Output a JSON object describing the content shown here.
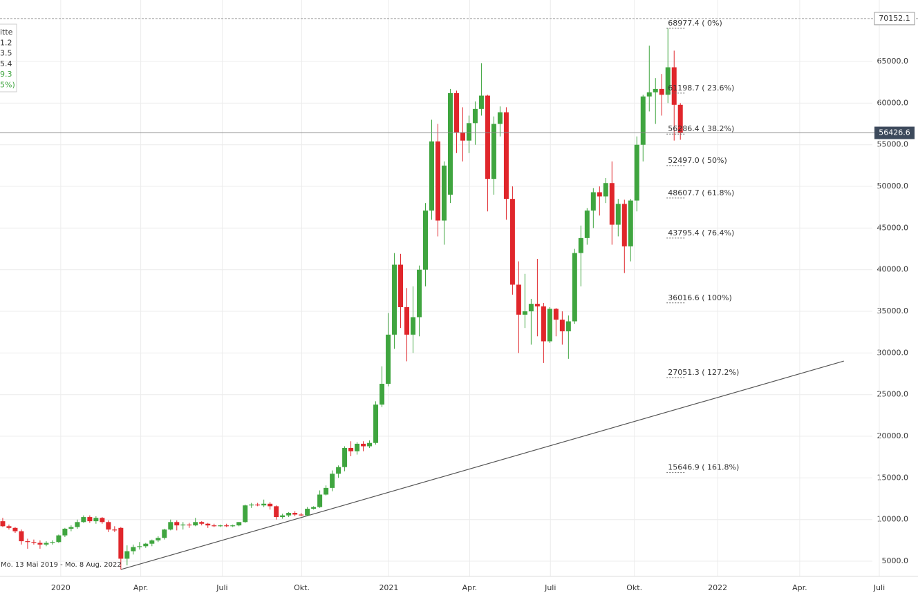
{
  "chart_data": {
    "type": "candlestick",
    "up_color": "#3fa53f",
    "down_color": "#e0262b",
    "grid": true,
    "legend_lines": [
      "itte",
      "1.2",
      "3.5",
      "5.4",
      "9.3",
      "5%)"
    ],
    "range_text": "Mo. 13 Mai 2019 - Mo. 8 Aug. 2022",
    "ylim": [
      3180,
      72380
    ],
    "yticks": [
      {
        "value": 5000,
        "label": "5000.0"
      },
      {
        "value": 10000,
        "label": "10000.0"
      },
      {
        "value": 15000,
        "label": "15000.0"
      },
      {
        "value": 20000,
        "label": "20000.0"
      },
      {
        "value": 25000,
        "label": "25000.0"
      },
      {
        "value": 30000,
        "label": "30000.0"
      },
      {
        "value": 35000,
        "label": "35000.0"
      },
      {
        "value": 40000,
        "label": "40000.0"
      },
      {
        "value": 45000,
        "label": "45000.0"
      },
      {
        "value": 50000,
        "label": "50000.0"
      },
      {
        "value": 55000,
        "label": "55000.0"
      },
      {
        "value": 60000,
        "label": "60000.0"
      },
      {
        "value": 65000,
        "label": "65000.0"
      }
    ],
    "xlim": [
      -0.44,
      143
    ],
    "xticks": [
      {
        "value": 9.33,
        "label": "2020"
      },
      {
        "value": 22.2,
        "label": "Apr."
      },
      {
        "value": 35.3,
        "label": "Juli"
      },
      {
        "value": 48.1,
        "label": "Okt."
      },
      {
        "value": 62.1,
        "label": "2021"
      },
      {
        "value": 75.1,
        "label": "Apr."
      },
      {
        "value": 88.1,
        "label": "Juli"
      },
      {
        "value": 101.6,
        "label": "Okt."
      },
      {
        "value": 115,
        "label": "2022"
      },
      {
        "value": 128.2,
        "label": "Apr."
      },
      {
        "value": 141,
        "label": "Juli"
      }
    ],
    "high_line": {
      "value": 70152.1,
      "label": "70152.1"
    },
    "last_price": {
      "value": 56426.6,
      "label": "56426.6"
    },
    "fib_levels": [
      {
        "value": 68977.4,
        "label": "68977.4 ( 0%)"
      },
      {
        "value": 61198.7,
        "label": "61198.7 ( 23.6%)"
      },
      {
        "value": 56286.4,
        "label": "56286.4 ( 38.2%)"
      },
      {
        "value": 52497.0,
        "label": "52497.0 ( 50%)"
      },
      {
        "value": 48607.7,
        "label": "48607.7 ( 61.8%)"
      },
      {
        "value": 43795.4,
        "label": "43795.4 ( 76.4%)"
      },
      {
        "value": 36016.6,
        "label": "36016.6 ( 100%)"
      },
      {
        "value": 27051.3,
        "label": "27051.3 ( 127.2%)"
      },
      {
        "value": 15646.9,
        "label": "15646.9 ( 161.8%)"
      }
    ],
    "trendline": {
      "x": [
        19,
        135.3
      ],
      "y": [
        4000,
        29030
      ]
    },
    "candles": [
      [
        9800,
        10200,
        9100,
        9200
      ],
      [
        9200,
        9400,
        8800,
        9000
      ],
      [
        9000,
        9100,
        8400,
        8600
      ],
      [
        8600,
        8800,
        7000,
        7400
      ],
      [
        7400,
        7700,
        6500,
        7300
      ],
      [
        7300,
        7600,
        7000,
        7200
      ],
      [
        7200,
        7500,
        6500,
        7000
      ],
      [
        7000,
        7400,
        6800,
        7200
      ],
      [
        7200,
        7500,
        7000,
        7300
      ],
      [
        7300,
        8200,
        7200,
        8100
      ],
      [
        8100,
        9000,
        7900,
        8900
      ],
      [
        8900,
        9300,
        8600,
        9100
      ],
      [
        9100,
        10000,
        8900,
        9700
      ],
      [
        9700,
        10500,
        9600,
        10300
      ],
      [
        10300,
        10500,
        9600,
        9800
      ],
      [
        9800,
        10400,
        9500,
        10200
      ],
      [
        10200,
        10300,
        9500,
        9700
      ],
      [
        9700,
        9900,
        8500,
        8800
      ],
      [
        8800,
        9200,
        8500,
        8700
      ],
      [
        9000,
        9100,
        4000,
        5300
      ],
      [
        5300,
        6900,
        4500,
        6200
      ],
      [
        6200,
        7000,
        5800,
        6700
      ],
      [
        6700,
        7300,
        6400,
        6800
      ],
      [
        6800,
        7200,
        6600,
        7100
      ],
      [
        7100,
        7600,
        6800,
        7500
      ],
      [
        7500,
        8000,
        7300,
        7800
      ],
      [
        7800,
        8900,
        7600,
        8800
      ],
      [
        8800,
        10000,
        8700,
        9700
      ],
      [
        9700,
        9900,
        8700,
        9300
      ],
      [
        9300,
        9700,
        8800,
        9400
      ],
      [
        9400,
        9600,
        9000,
        9300
      ],
      [
        9300,
        10200,
        9200,
        9700
      ],
      [
        9700,
        9800,
        9300,
        9500
      ],
      [
        9500,
        9600,
        9000,
        9300
      ],
      [
        9300,
        9500,
        9100,
        9200
      ],
      [
        9200,
        9400,
        9100,
        9300
      ],
      [
        9300,
        9500,
        9100,
        9200
      ],
      [
        9200,
        9400,
        9100,
        9300
      ],
      [
        9300,
        9700,
        9200,
        9700
      ],
      [
        9700,
        11800,
        9600,
        11700
      ],
      [
        11700,
        12000,
        11400,
        11800
      ],
      [
        11800,
        12000,
        11600,
        11700
      ],
      [
        11700,
        12400,
        11500,
        11900
      ],
      [
        11900,
        12100,
        11200,
        11600
      ],
      [
        11600,
        11700,
        10000,
        10300
      ],
      [
        10300,
        10700,
        10100,
        10500
      ],
      [
        10500,
        10900,
        10300,
        10800
      ],
      [
        10800,
        11000,
        10400,
        10600
      ],
      [
        10600,
        10800,
        10400,
        10500
      ],
      [
        10500,
        11500,
        10400,
        11300
      ],
      [
        11300,
        11600,
        11200,
        11500
      ],
      [
        11500,
        13500,
        11400,
        13000
      ],
      [
        13000,
        14100,
        12900,
        13800
      ],
      [
        13800,
        15900,
        13400,
        15500
      ],
      [
        15500,
        16500,
        15000,
        16300
      ],
      [
        16300,
        18800,
        15800,
        18600
      ],
      [
        18600,
        19400,
        17600,
        18200
      ],
      [
        18200,
        19300,
        17800,
        19100
      ],
      [
        19100,
        19400,
        18200,
        18800
      ],
      [
        18800,
        19500,
        18600,
        19200
      ],
      [
        19200,
        24200,
        19000,
        23800
      ],
      [
        23800,
        28400,
        23500,
        26300
      ],
      [
        26300,
        34800,
        26000,
        32200
      ],
      [
        32200,
        42000,
        30500,
        40600
      ],
      [
        40600,
        41900,
        33000,
        35500
      ],
      [
        35500,
        37800,
        29000,
        32200
      ],
      [
        32200,
        38000,
        30000,
        34300
      ],
      [
        34300,
        40500,
        32000,
        40000
      ],
      [
        40000,
        48000,
        38000,
        47100
      ],
      [
        47100,
        58000,
        46000,
        55400
      ],
      [
        55400,
        57500,
        44000,
        45900
      ],
      [
        45900,
        53000,
        43000,
        52500
      ],
      [
        49000,
        61700,
        48000,
        61200
      ],
      [
        61200,
        61500,
        54000,
        56500
      ],
      [
        56500,
        59500,
        53000,
        55500
      ],
      [
        55500,
        58500,
        54000,
        57600
      ],
      [
        57600,
        60200,
        55000,
        59300
      ],
      [
        59300,
        64800,
        58500,
        60900
      ],
      [
        60900,
        61000,
        47000,
        50900
      ],
      [
        50900,
        58400,
        49000,
        57500
      ],
      [
        57500,
        59600,
        56000,
        58900
      ],
      [
        58900,
        59500,
        46000,
        48500
      ],
      [
        48500,
        50000,
        37000,
        38200
      ],
      [
        38200,
        41000,
        30000,
        34600
      ],
      [
        34600,
        39500,
        33000,
        35000
      ],
      [
        35000,
        36500,
        31000,
        35900
      ],
      [
        35900,
        41300,
        32000,
        35600
      ],
      [
        35600,
        36000,
        28800,
        31400
      ],
      [
        31400,
        35500,
        31200,
        35300
      ],
      [
        35300,
        35400,
        32000,
        34000
      ],
      [
        34000,
        35000,
        31000,
        32600
      ],
      [
        32600,
        34500,
        29300,
        33800
      ],
      [
        33800,
        42500,
        33500,
        42000
      ],
      [
        42000,
        45300,
        38000,
        43800
      ],
      [
        43800,
        47400,
        43000,
        47100
      ],
      [
        47100,
        49800,
        45000,
        49300
      ],
      [
        49300,
        50000,
        46500,
        48800
      ],
      [
        48800,
        51000,
        48000,
        50400
      ],
      [
        50400,
        53000,
        43000,
        45400
      ],
      [
        45400,
        48500,
        44000,
        47900
      ],
      [
        47900,
        48400,
        39600,
        42800
      ],
      [
        42800,
        48500,
        41000,
        48300
      ],
      [
        48300,
        56000,
        47000,
        55000
      ],
      [
        55000,
        61000,
        53000,
        60800
      ],
      [
        60800,
        66900,
        59000,
        61300
      ],
      [
        61300,
        63000,
        57500,
        61700
      ],
      [
        61700,
        63500,
        58500,
        61000
      ],
      [
        61000,
        68977.4,
        60000,
        64300
      ],
      [
        64300,
        66300,
        55500,
        59800
      ],
      [
        59800,
        60000,
        55600,
        56426.6
      ]
    ]
  }
}
